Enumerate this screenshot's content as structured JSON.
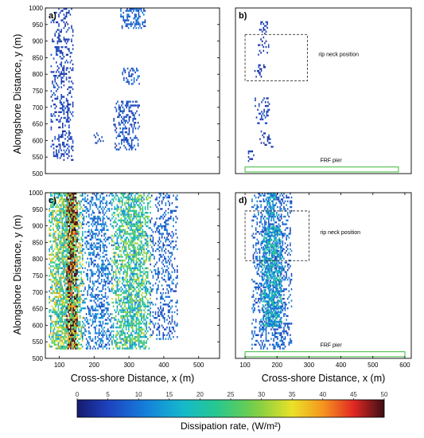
{
  "figure": {
    "shared_ylabel": "Alongshore Distance, y (m)",
    "colorbar": {
      "label": "Dissipation rate, (W/m²)",
      "min": 0,
      "max": 50,
      "ticks": [
        0,
        5,
        10,
        15,
        20,
        25,
        30,
        35,
        40,
        45,
        50
      ],
      "colormap": "parula-like (dark navy -> blue -> cyan -> green -> yellow -> orange -> red -> dark maroon)"
    }
  },
  "chart_data": [
    {
      "type": "heatmap",
      "panel_label": "a)",
      "xlabel": "",
      "ylabel": "",
      "xlim": [
        60,
        560
      ],
      "ylim": [
        500,
        1000
      ],
      "xticks": [],
      "yticks": [
        500,
        550,
        600,
        650,
        700,
        750,
        800,
        850,
        900,
        950,
        1000
      ],
      "dissipation_regions": [
        {
          "x_range": [
            75,
            140
          ],
          "y_range": [
            540,
            1000
          ],
          "typical_value": 5,
          "density": 0.35
        },
        {
          "x_range": [
            195,
            230
          ],
          "y_range": [
            590,
            630
          ],
          "typical_value": 6,
          "density": 0.3
        },
        {
          "x_range": [
            255,
            330
          ],
          "y_range": [
            570,
            720
          ],
          "typical_value": 6,
          "density": 0.45
        },
        {
          "x_range": [
            280,
            330
          ],
          "y_range": [
            770,
            820
          ],
          "typical_value": 7,
          "density": 0.5
        },
        {
          "x_range": [
            275,
            345
          ],
          "y_range": [
            940,
            1000
          ],
          "typical_value": 8,
          "density": 0.5
        }
      ]
    },
    {
      "type": "heatmap",
      "panel_label": "b)",
      "xlabel": "",
      "ylabel": "",
      "xlim": [
        70,
        620
      ],
      "ylim": [
        500,
        1000
      ],
      "xticks": [],
      "yticks": [],
      "annotations": [
        {
          "text": "rip neck position",
          "box_x": [
            100,
            295
          ],
          "box_y": [
            780,
            920
          ]
        },
        {
          "text": "FRF pier",
          "box_x": [
            100,
            580
          ],
          "box_y": [
            505,
            520
          ]
        }
      ],
      "dissipation_regions": [
        {
          "x_range": [
            140,
            175
          ],
          "y_range": [
            860,
            960
          ],
          "typical_value": 4,
          "density": 0.25
        },
        {
          "x_range": [
            125,
            165
          ],
          "y_range": [
            790,
            830
          ],
          "typical_value": 4,
          "density": 0.25
        },
        {
          "x_range": [
            130,
            180
          ],
          "y_range": [
            650,
            730
          ],
          "typical_value": 5,
          "density": 0.3
        },
        {
          "x_range": [
            145,
            185
          ],
          "y_range": [
            580,
            630
          ],
          "typical_value": 4,
          "density": 0.25
        },
        {
          "x_range": [
            105,
            125
          ],
          "y_range": [
            540,
            570
          ],
          "typical_value": 4,
          "density": 0.3
        }
      ]
    },
    {
      "type": "heatmap",
      "panel_label": "c)",
      "xlabel": "Cross-shore Distance, x (m)",
      "ylabel": "",
      "xlim": [
        60,
        560
      ],
      "ylim": [
        500,
        1000
      ],
      "xticks": [
        100,
        200,
        300,
        400,
        500
      ],
      "yticks": [
        500,
        550,
        600,
        650,
        700,
        750,
        800,
        850,
        900,
        950,
        1000
      ],
      "dissipation_regions": [
        {
          "x_range": [
            70,
            165
          ],
          "y_range": [
            530,
            1000
          ],
          "typical_value": 26,
          "density": 0.8
        },
        {
          "x_range": [
            120,
            150
          ],
          "y_range": [
            530,
            1000
          ],
          "typical_value": 47,
          "density": 0.85
        },
        {
          "x_range": [
            165,
            250
          ],
          "y_range": [
            530,
            1000
          ],
          "typical_value": 10,
          "density": 0.45
        },
        {
          "x_range": [
            250,
            360
          ],
          "y_range": [
            530,
            1000
          ],
          "typical_value": 22,
          "density": 0.7
        },
        {
          "x_range": [
            360,
            440
          ],
          "y_range": [
            560,
            1000
          ],
          "typical_value": 8,
          "density": 0.3
        }
      ]
    },
    {
      "type": "heatmap",
      "panel_label": "d)",
      "xlabel": "Cross-shore Distance, x (m)",
      "ylabel": "",
      "xlim": [
        70,
        620
      ],
      "ylim": [
        500,
        1000
      ],
      "xticks": [
        100,
        200,
        300,
        400,
        500,
        600
      ],
      "yticks": [],
      "annotations": [
        {
          "text": "rip neck position",
          "box_x": [
            100,
            300
          ],
          "box_y": [
            795,
            945
          ]
        },
        {
          "text": "FRF pier",
          "box_x": [
            100,
            600
          ],
          "box_y": [
            505,
            520
          ]
        }
      ],
      "dissipation_regions": [
        {
          "x_range": [
            120,
            245
          ],
          "y_range": [
            530,
            1000
          ],
          "typical_value": 8,
          "density": 0.45
        },
        {
          "x_range": [
            150,
            215
          ],
          "y_range": [
            600,
            900
          ],
          "typical_value": 16,
          "density": 0.7
        },
        {
          "x_range": [
            165,
            200
          ],
          "y_range": [
            920,
            1000
          ],
          "typical_value": 14,
          "density": 0.6
        }
      ]
    }
  ]
}
